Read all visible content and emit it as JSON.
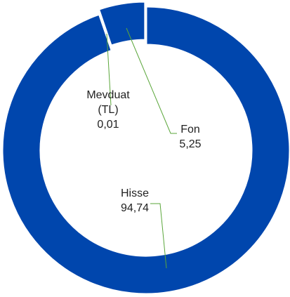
{
  "chart_data": {
    "type": "donut",
    "categories": [
      "Hisse",
      "Mevduat (TL)",
      "Fon"
    ],
    "values": [
      94.74,
      0.01,
      5.25
    ],
    "value_labels": [
      "94,74",
      "0,01",
      "5,25"
    ],
    "colors": [
      "#0046ad",
      "#0046ad",
      "#0046ad"
    ]
  }
}
